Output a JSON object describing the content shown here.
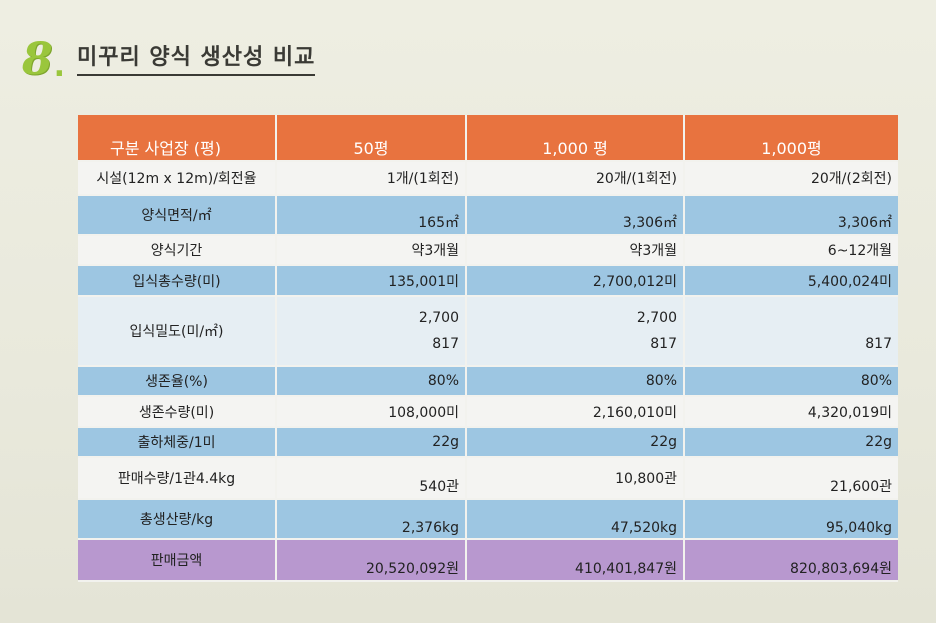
{
  "heading": {
    "number": "8",
    "title": "미꾸리 양식 생산성 비교"
  },
  "table": {
    "headers": [
      "구분 사업장 (평)",
      "50평",
      "1,000 평",
      "1,000평"
    ],
    "rows": [
      {
        "label": "시설(12m x 12m)/회전율",
        "values": [
          "1개/(1회전)",
          "20개/(1회전)",
          "20개/(2회전)"
        ]
      },
      {
        "label": "양식면적/㎡",
        "values": [
          "165㎡",
          "3,306㎡",
          "3,306㎡"
        ]
      },
      {
        "label": "양식기간",
        "values": [
          "약3개월",
          "약3개월",
          "6~12개월"
        ]
      },
      {
        "label": "입식총수량(미)",
        "values": [
          "135,001미",
          "2,700,012미",
          "5,400,024미"
        ]
      },
      {
        "label": "입식밀도(미/㎡)",
        "values_top": [
          "2,700",
          "2,700",
          ""
        ],
        "values_bottom": [
          "817",
          "817",
          "817"
        ]
      },
      {
        "label": "생존율(%)",
        "values": [
          "80%",
          "80%",
          "80%"
        ]
      },
      {
        "label": "생존수량(미)",
        "values": [
          "108,000미",
          "2,160,010미",
          "4,320,019미"
        ]
      },
      {
        "label": "출하체중/1미",
        "values": [
          "22g",
          "22g",
          "22g"
        ]
      },
      {
        "label": "판매수량/1관4.4kg",
        "values": [
          "540관",
          "10,800관",
          "21,600관"
        ]
      },
      {
        "label": "총생산량/kg",
        "values": [
          "2,376kg",
          "47,520kg",
          "95,040kg"
        ]
      },
      {
        "label": "판매금액",
        "values": [
          "20,520,092원",
          "410,401,847원",
          "820,803,694원"
        ]
      }
    ]
  }
}
